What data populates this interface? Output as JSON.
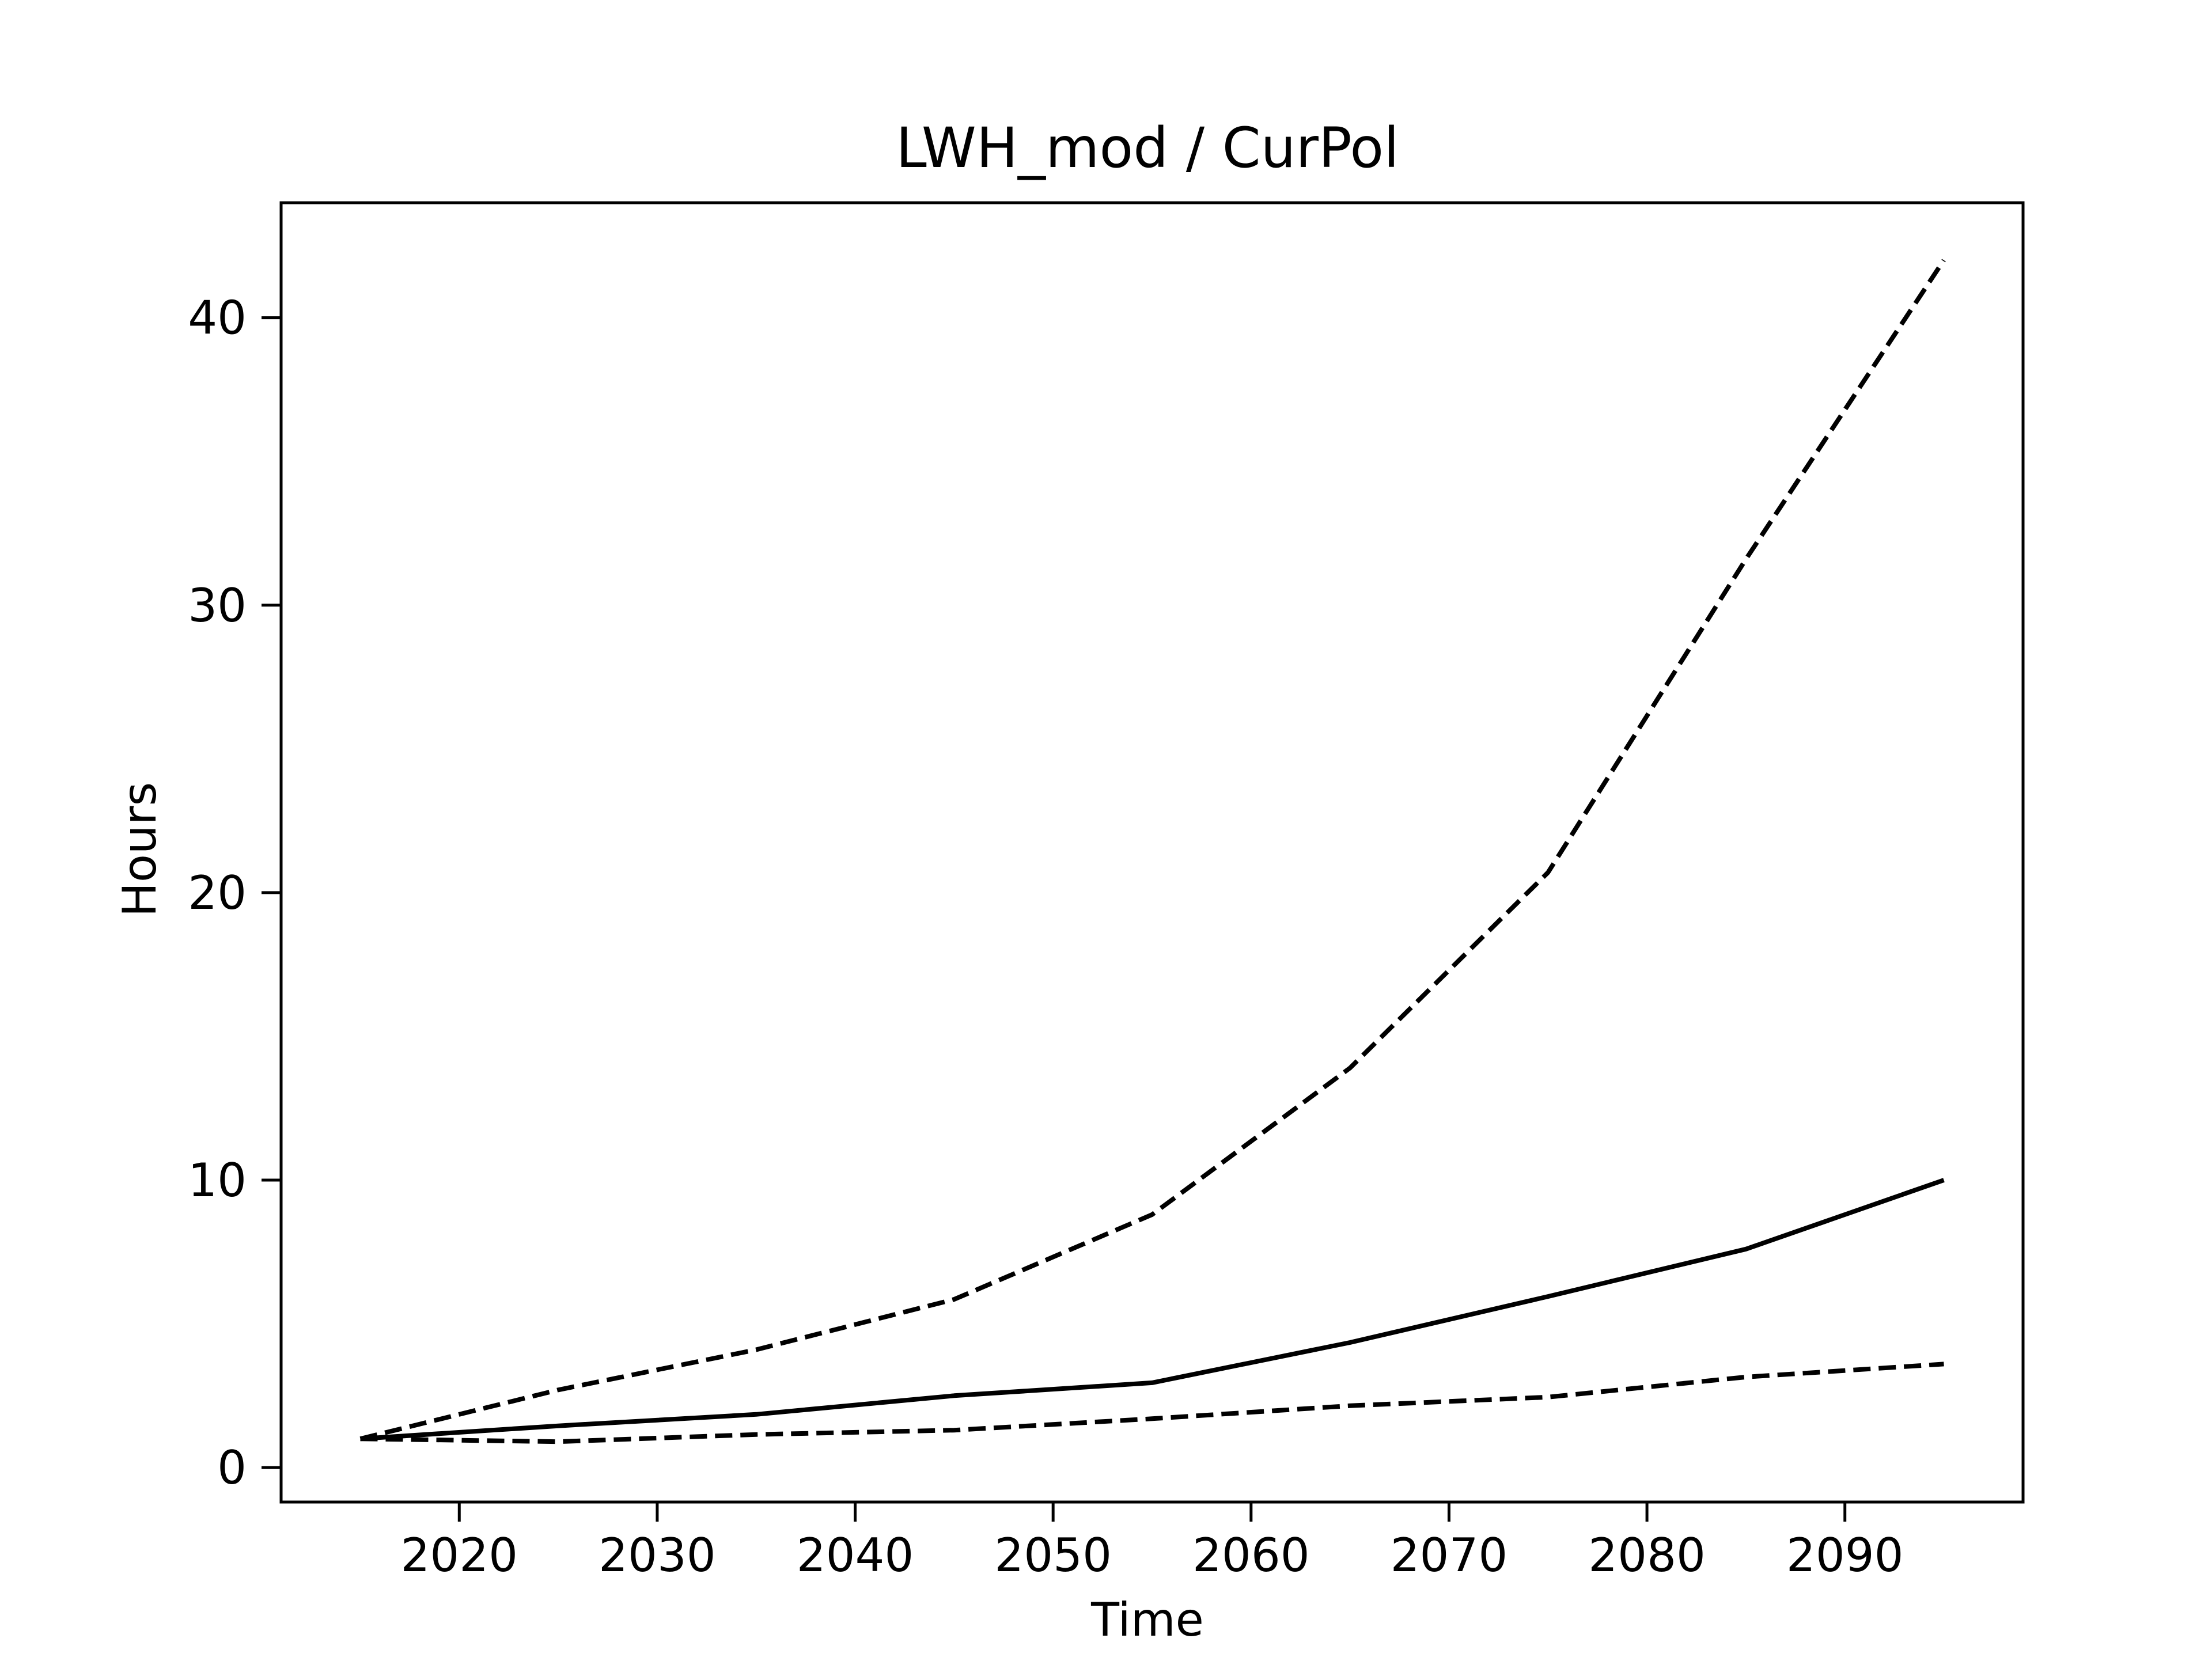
{
  "chart_data": {
    "type": "line",
    "title": "LWH_mod / CurPol",
    "xlabel": "Time",
    "ylabel": "Hours",
    "xlim": [
      2011,
      2099
    ],
    "ylim": [
      -1.2,
      44
    ],
    "xticks": [
      2020,
      2030,
      2040,
      2050,
      2060,
      2070,
      2080,
      2090
    ],
    "yticks": [
      0,
      10,
      20,
      30,
      40
    ],
    "grid": false,
    "legend": "none",
    "colors": {
      "line": "#000000",
      "axes": "#000000",
      "background": "#ffffff"
    },
    "x": [
      2015,
      2025,
      2035,
      2045,
      2055,
      2065,
      2075,
      2085,
      2095
    ],
    "series": [
      {
        "style": "solid",
        "values": [
          1.0,
          1.45,
          1.85,
          2.5,
          2.95,
          4.35,
          5.95,
          7.6,
          10.0
        ]
      },
      {
        "style": "dashed",
        "values": [
          1.0,
          2.7,
          4.1,
          5.85,
          8.8,
          13.9,
          20.7,
          31.6,
          42.0
        ]
      },
      {
        "style": "dashed",
        "values": [
          1.0,
          0.9,
          1.15,
          1.3,
          1.7,
          2.15,
          2.45,
          3.15,
          3.6
        ]
      }
    ]
  }
}
